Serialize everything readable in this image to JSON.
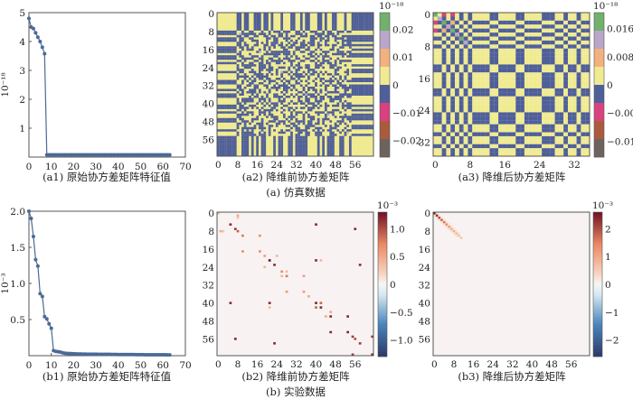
{
  "figure": {
    "group_a_caption": "(a) 仿真数据",
    "group_b_caption": "(b) 实验数据"
  },
  "colors": {
    "line": "#4a6a96",
    "discrete_levels": [
      "#72b06d",
      "#b9a6c9",
      "#f2b17f",
      "#f0eb93",
      "#4f5f99",
      "#d9427e",
      "#aa5b3d",
      "#6d635d"
    ],
    "diverging": [
      "#2c3869",
      "#4a86bd",
      "#d4e6f0",
      "#f7f7f7",
      "#f8d3bf",
      "#ec8a64",
      "#6d1023"
    ]
  },
  "chart_data": [
    {
      "id": "a1",
      "type": "line",
      "caption": "(a1) 原始协方差矩阵特征值",
      "ylabel": "10⁻¹⁸",
      "xlim": [
        0,
        70
      ],
      "ylim": [
        0,
        5
      ],
      "xticks": [
        0,
        10,
        20,
        30,
        40,
        50,
        60,
        70
      ],
      "yticks": [
        1,
        2,
        3,
        4,
        5
      ],
      "x_start": 0,
      "values": [
        4.8,
        4.5,
        4.45,
        4.3,
        4.15,
        4.0,
        3.8,
        3.58,
        0.08,
        0.08,
        0.08,
        0.08,
        0.08,
        0.08,
        0.08,
        0.08,
        0.08,
        0.08,
        0.08,
        0.08,
        0.08,
        0.08,
        0.08,
        0.08,
        0.08,
        0.08,
        0.08,
        0.08,
        0.08,
        0.08,
        0.08,
        0.08,
        0.08,
        0.08,
        0.08,
        0.08,
        0.08,
        0.08,
        0.08,
        0.08,
        0.08,
        0.08,
        0.08,
        0.08,
        0.08,
        0.08,
        0.08,
        0.08,
        0.08,
        0.08,
        0.08,
        0.08,
        0.08,
        0.08,
        0.08,
        0.08,
        0.08,
        0.08,
        0.08,
        0.08,
        0.08,
        0.08,
        0.08,
        0.08
      ]
    },
    {
      "id": "a2",
      "type": "heatmap",
      "caption": "(a2) 降维前协方差矩阵",
      "size": 64,
      "ticks": [
        0,
        8,
        16,
        24,
        32,
        40,
        48,
        56
      ],
      "colorbar": {
        "exponent": "10⁻¹⁸",
        "range": [
          -0.026,
          0.026
        ],
        "ticks": [
          0.02,
          0.01,
          0,
          -0.01,
          -0.02
        ],
        "tick_labels": [
          "0.02",
          "0.01",
          "0",
          "−0.01",
          "−0.02"
        ]
      },
      "description_values": "sign pattern: positive (yellow) / negative (blue)"
    },
    {
      "id": "a3",
      "type": "heatmap",
      "caption": "(a3) 降维后协方差矩阵",
      "size": 36,
      "ticks": [
        0,
        8,
        16,
        24,
        32
      ],
      "row_signs": [
        1,
        1,
        -1,
        1,
        -1,
        1,
        -1,
        1,
        -1,
        1,
        1,
        1,
        1,
        -1,
        -1,
        1,
        1,
        1,
        1,
        -1,
        -1,
        1,
        1,
        1,
        1,
        -1,
        -1,
        -1,
        1,
        1,
        -1,
        1,
        1,
        -1,
        1,
        1
      ],
      "special_cells": [
        [
          0,
          0,
          0.018
        ],
        [
          1,
          1,
          0.014
        ],
        [
          2,
          2,
          0.018
        ],
        [
          3,
          3,
          0.014
        ],
        [
          4,
          4,
          0.018
        ],
        [
          5,
          5,
          0.014
        ],
        [
          6,
          6,
          0.018
        ],
        [
          7,
          7,
          0.014
        ],
        [
          0,
          2,
          -0.006
        ],
        [
          2,
          0,
          -0.006
        ],
        [
          0,
          4,
          -0.006
        ],
        [
          4,
          0,
          -0.006
        ],
        [
          2,
          4,
          0.006
        ],
        [
          4,
          2,
          0.006
        ]
      ],
      "colorbar": {
        "exponent": "10⁻¹⁸",
        "range": [
          -0.0205,
          0.0205
        ],
        "ticks": [
          0.016,
          0.008,
          0,
          -0.008,
          -0.016
        ],
        "tick_labels": [
          "0.016",
          "0.008",
          "0",
          "−0.008",
          "−0.016"
        ]
      }
    },
    {
      "id": "b1",
      "type": "line",
      "caption": "(b1) 原始协方差矩阵特征值",
      "ylabel": "10⁻³",
      "xlim": [
        0,
        70
      ],
      "ylim": [
        0,
        2.0
      ],
      "xticks": [
        0,
        10,
        20,
        30,
        40,
        50,
        60,
        70
      ],
      "yticks": [
        0.5,
        1.0,
        1.5,
        2.0
      ],
      "ytick_labels": [
        "0.5",
        "1.0",
        "1.5",
        "2.0"
      ],
      "x_start": 0,
      "values": [
        2.0,
        1.9,
        1.65,
        1.33,
        1.24,
        0.86,
        0.82,
        0.54,
        0.51,
        0.44,
        0.38,
        0.07,
        0.06,
        0.055,
        0.05,
        0.04,
        0.035,
        0.032,
        0.03,
        0.028,
        0.026,
        0.025,
        0.024,
        0.023,
        0.022,
        0.022,
        0.021,
        0.021,
        0.02,
        0.02,
        0.02,
        0.019,
        0.019,
        0.019,
        0.018,
        0.018,
        0.018,
        0.017,
        0.017,
        0.017,
        0.016,
        0.016,
        0.016,
        0.016,
        0.015,
        0.015,
        0.015,
        0.015,
        0.014,
        0.014,
        0.014,
        0.014,
        0.013,
        0.013,
        0.013,
        0.013,
        0.013,
        0.012,
        0.012,
        0.012,
        0.012,
        0.012,
        0.011,
        0.011
      ]
    },
    {
      "id": "b2",
      "type": "heatmap",
      "caption": "(b2) 降维前协方差矩阵",
      "size": 64,
      "ticks": [
        0,
        8,
        16,
        24,
        32,
        40,
        48,
        56
      ],
      "cells": [
        [
          5,
          5,
          1.2
        ],
        [
          40,
          40,
          1.2
        ],
        [
          5,
          40,
          1.2
        ],
        [
          7,
          7,
          1.1
        ],
        [
          8,
          8,
          0.9
        ],
        [
          10,
          10,
          0.8
        ],
        [
          17,
          17,
          0.7
        ],
        [
          10,
          17,
          0.7
        ],
        [
          19,
          19,
          0.6
        ],
        [
          21,
          21,
          1.3
        ],
        [
          23,
          23,
          1.2
        ],
        [
          21,
          40,
          1.2
        ],
        [
          21,
          42,
          0.4
        ],
        [
          23,
          58,
          1.2
        ],
        [
          26,
          26,
          0.7
        ],
        [
          28,
          28,
          0.8
        ],
        [
          26,
          28,
          0.4
        ],
        [
          35,
          35,
          0.6
        ],
        [
          28,
          35,
          0.6
        ],
        [
          37,
          37,
          0.5
        ],
        [
          42,
          42,
          1.2
        ],
        [
          40,
          42,
          0.9
        ],
        [
          46,
          46,
          1.2
        ],
        [
          53,
          53,
          1.2
        ],
        [
          46,
          53,
          1.2
        ],
        [
          55,
          55,
          1.1
        ],
        [
          56,
          56,
          1.0
        ],
        [
          58,
          58,
          1.1
        ],
        [
          55,
          63,
          1.1
        ],
        [
          7,
          56,
          1.2
        ],
        [
          63,
          63,
          1.2
        ],
        [
          0,
          0,
          0.4
        ],
        [
          1,
          8,
          0.5
        ],
        [
          2,
          8,
          0.3
        ],
        [
          19,
          24,
          0.4
        ],
        [
          44,
          46,
          0.5
        ]
      ],
      "colorbar": {
        "exponent": "10⁻³",
        "range": [
          -1.3,
          1.3
        ],
        "ticks": [
          1.0,
          0.5,
          0,
          -0.5,
          -1.0
        ],
        "tick_labels": [
          "1.0",
          "0.5",
          "0",
          "−0.5",
          "−1.0"
        ]
      }
    },
    {
      "id": "b3",
      "type": "heatmap",
      "caption": "(b3) 降维后协方差矩阵",
      "size": 64,
      "ticks": [
        0,
        8,
        16,
        24,
        32,
        40,
        48,
        56
      ],
      "diagonal_values": [
        2.6,
        2.3,
        2.0,
        1.8,
        1.6,
        1.4,
        1.2,
        1.0,
        0.9,
        0.8,
        0.7,
        0.6
      ],
      "colorbar": {
        "exponent": "10⁻³",
        "range": [
          -2.6,
          2.6
        ],
        "ticks": [
          2,
          1,
          0,
          -1,
          -2
        ],
        "tick_labels": [
          "2",
          "1",
          "0",
          "−1",
          "−2"
        ]
      }
    }
  ]
}
